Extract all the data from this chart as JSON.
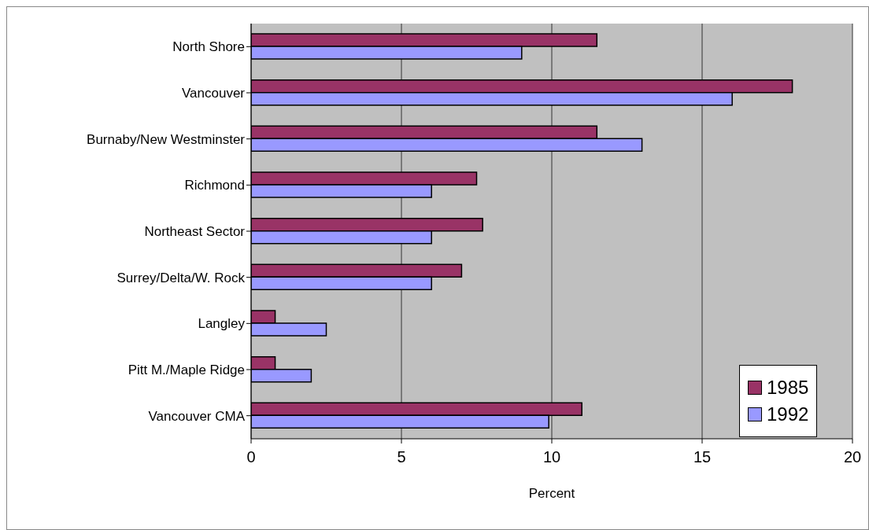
{
  "chart_data": {
    "type": "bar",
    "orientation": "horizontal",
    "xlabel": "Percent",
    "categories": [
      "North Shore",
      "Vancouver",
      "Burnaby/New Westminster",
      "Richmond",
      "Northeast Sector",
      "Surrey/Delta/W. Rock",
      "Langley",
      "Pitt M./Maple Ridge",
      "Vancouver CMA"
    ],
    "series": [
      {
        "name": "1985",
        "color": "#993366",
        "values": [
          11.5,
          18,
          11.5,
          7.5,
          7.7,
          7,
          0.8,
          0.8,
          11
        ]
      },
      {
        "name": "1992",
        "color": "#9999ff",
        "values": [
          9,
          16,
          13,
          6,
          6,
          6,
          2.5,
          2,
          9.9
        ]
      }
    ],
    "xlim": [
      0,
      20
    ],
    "xticks": [
      0,
      5,
      10,
      15,
      20
    ],
    "grid": "x",
    "legend": "bottom right"
  }
}
